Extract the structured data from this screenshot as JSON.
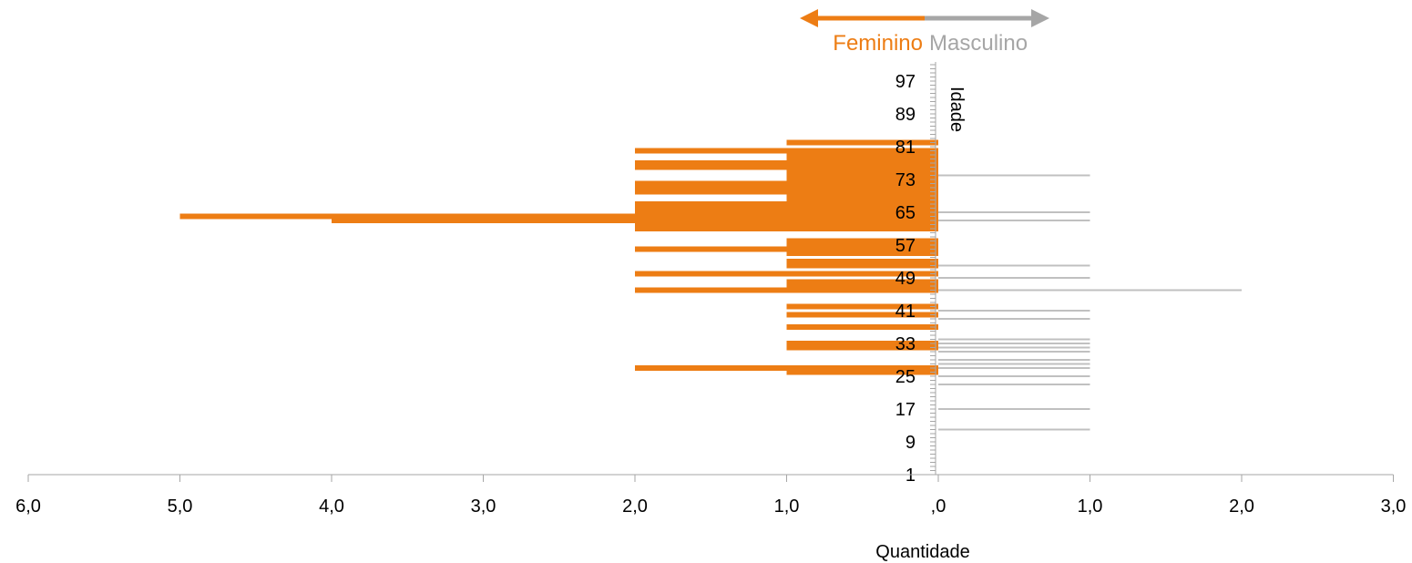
{
  "chart_data": {
    "type": "bar",
    "orientation": "horizontal",
    "layout": "population-pyramid",
    "xlabel": "Quantidade",
    "ylabel": "Idade",
    "left_ticks": [
      ",0",
      "1,0",
      "2,0",
      "3,0",
      "4,0",
      "5,0",
      "6,0"
    ],
    "right_ticks": [
      "1,0",
      "2,0",
      "3,0"
    ],
    "left_range": [
      0,
      6
    ],
    "right_range": [
      0,
      3
    ],
    "age_range": [
      1,
      101
    ],
    "age_tick_labels": [
      "1",
      "9",
      "17",
      "25",
      "33",
      "41",
      "49",
      "57",
      "65",
      "73",
      "81",
      "89",
      "97"
    ],
    "legend": {
      "left": "Feminino",
      "right": "Masculino",
      "placement": "top-center"
    },
    "colors": {
      "feminino": "#ED7D14",
      "masculino": "#C0C0C0",
      "axis": "#A6A6A6",
      "text": "#000000"
    },
    "series": [
      {
        "name": "Feminino",
        "side": "left",
        "points": [
          {
            "age": 26,
            "value": 1
          },
          {
            "age": 27,
            "value": 2
          },
          {
            "age": 32,
            "value": 1
          },
          {
            "age": 33,
            "value": 1
          },
          {
            "age": 37,
            "value": 1
          },
          {
            "age": 40,
            "value": 1
          },
          {
            "age": 42,
            "value": 1
          },
          {
            "age": 46,
            "value": 2
          },
          {
            "age": 47,
            "value": 1
          },
          {
            "age": 48,
            "value": 1
          },
          {
            "age": 50,
            "value": 2
          },
          {
            "age": 52,
            "value": 1
          },
          {
            "age": 53,
            "value": 1
          },
          {
            "age": 55,
            "value": 1
          },
          {
            "age": 56,
            "value": 2
          },
          {
            "age": 57,
            "value": 1
          },
          {
            "age": 58,
            "value": 1
          },
          {
            "age": 61,
            "value": 2
          },
          {
            "age": 62,
            "value": 2
          },
          {
            "age": 63,
            "value": 4
          },
          {
            "age": 64,
            "value": 5
          },
          {
            "age": 65,
            "value": 2
          },
          {
            "age": 66,
            "value": 2
          },
          {
            "age": 67,
            "value": 2
          },
          {
            "age": 68,
            "value": 1
          },
          {
            "age": 69,
            "value": 1
          },
          {
            "age": 70,
            "value": 2
          },
          {
            "age": 71,
            "value": 2
          },
          {
            "age": 72,
            "value": 2
          },
          {
            "age": 73,
            "value": 1
          },
          {
            "age": 74,
            "value": 1
          },
          {
            "age": 75,
            "value": 1
          },
          {
            "age": 76,
            "value": 2
          },
          {
            "age": 77,
            "value": 2
          },
          {
            "age": 78,
            "value": 1
          },
          {
            "age": 79,
            "value": 1
          },
          {
            "age": 80,
            "value": 2
          },
          {
            "age": 82,
            "value": 1
          }
        ]
      },
      {
        "name": "Masculino",
        "side": "right",
        "points": [
          {
            "age": 12,
            "value": 1
          },
          {
            "age": 17,
            "value": 1
          },
          {
            "age": 23,
            "value": 1
          },
          {
            "age": 25,
            "value": 1
          },
          {
            "age": 27,
            "value": 1
          },
          {
            "age": 28,
            "value": 1
          },
          {
            "age": 29,
            "value": 1
          },
          {
            "age": 31,
            "value": 1
          },
          {
            "age": 32,
            "value": 1
          },
          {
            "age": 33,
            "value": 1
          },
          {
            "age": 34,
            "value": 1
          },
          {
            "age": 39,
            "value": 1
          },
          {
            "age": 41,
            "value": 1
          },
          {
            "age": 46,
            "value": 2
          },
          {
            "age": 49,
            "value": 1
          },
          {
            "age": 52,
            "value": 1
          },
          {
            "age": 63,
            "value": 1
          },
          {
            "age": 65,
            "value": 1
          },
          {
            "age": 74,
            "value": 1
          }
        ]
      }
    ]
  }
}
